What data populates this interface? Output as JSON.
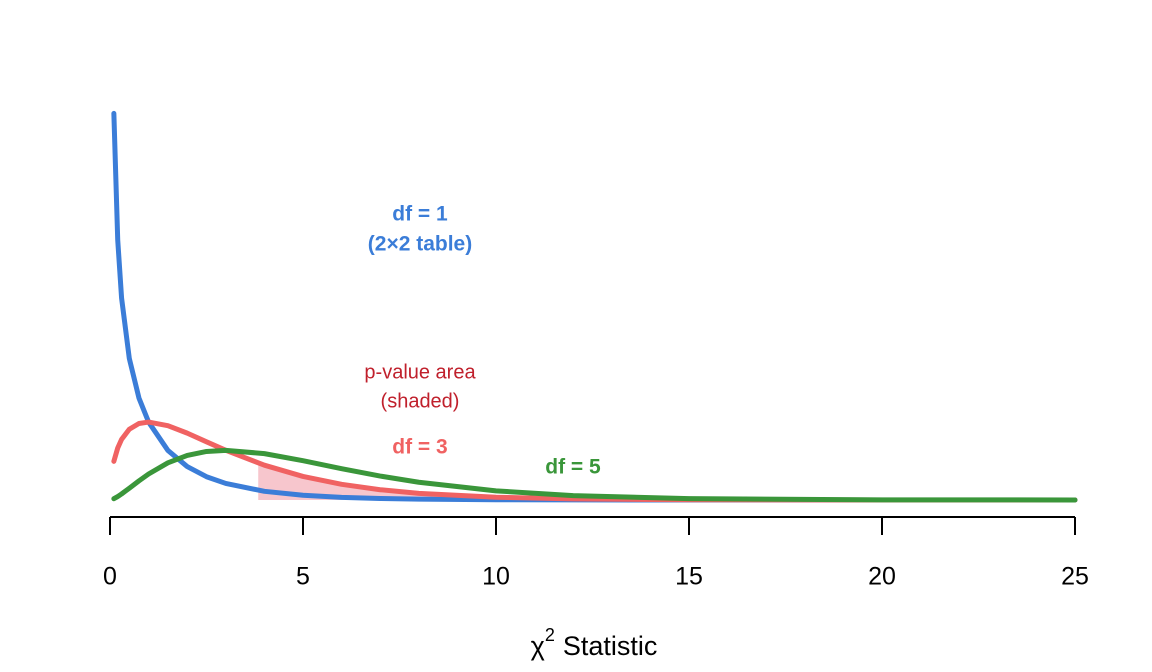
{
  "chart_data": {
    "type": "line",
    "xlabel": {
      "symbol": "χ",
      "superscript": "2",
      "text": "Statistic"
    },
    "x": [
      0.1,
      0.2,
      0.3,
      0.5,
      0.75,
      1,
      1.5,
      2,
      2.5,
      3,
      4,
      5,
      6,
      7,
      8,
      10,
      12,
      15,
      20,
      25
    ],
    "series": [
      {
        "name": "df = 1",
        "color": "#3b7dd8",
        "values": [
          1.2,
          0.8072,
          0.6269,
          0.4394,
          0.3166,
          0.242,
          0.1539,
          0.1038,
          0.0723,
          0.0514,
          0.027,
          0.0146,
          0.0081,
          0.0046,
          0.0026,
          0.00085,
          0.00029,
          0.0001,
          0,
          0
        ]
      },
      {
        "name": "df = 3",
        "color": "#f06262",
        "values": [
          0.12,
          0.1614,
          0.1881,
          0.2197,
          0.2374,
          0.242,
          0.2308,
          0.2076,
          0.1807,
          0.1542,
          0.108,
          0.0732,
          0.0487,
          0.0319,
          0.0207,
          0.0085,
          0.0034,
          0.00085,
          8e-05,
          0
        ]
      },
      {
        "name": "df = 5",
        "color": "#3a963a",
        "values": [
          0.004,
          0.0108,
          0.0188,
          0.0366,
          0.0594,
          0.0807,
          0.1154,
          0.1384,
          0.1506,
          0.1542,
          0.144,
          0.122,
          0.0973,
          0.0744,
          0.0551,
          0.0283,
          0.0137,
          0.0043,
          0.00054,
          6e-05
        ]
      }
    ],
    "shade": {
      "xlim": [
        3.84,
        25
      ],
      "color": "#f5b8c0"
    },
    "annotations": [
      {
        "text": "(2×2 table)",
        "color": "#3b7dd8"
      },
      {
        "text": "p-value area",
        "color": "#c0202c"
      },
      {
        "text": "(shaded)",
        "color": "#c0202c"
      }
    ],
    "xlim": [
      0,
      25
    ],
    "xticks": [
      0,
      5,
      10,
      15,
      20,
      25
    ],
    "ylim": [
      0,
      1.4
    ]
  }
}
